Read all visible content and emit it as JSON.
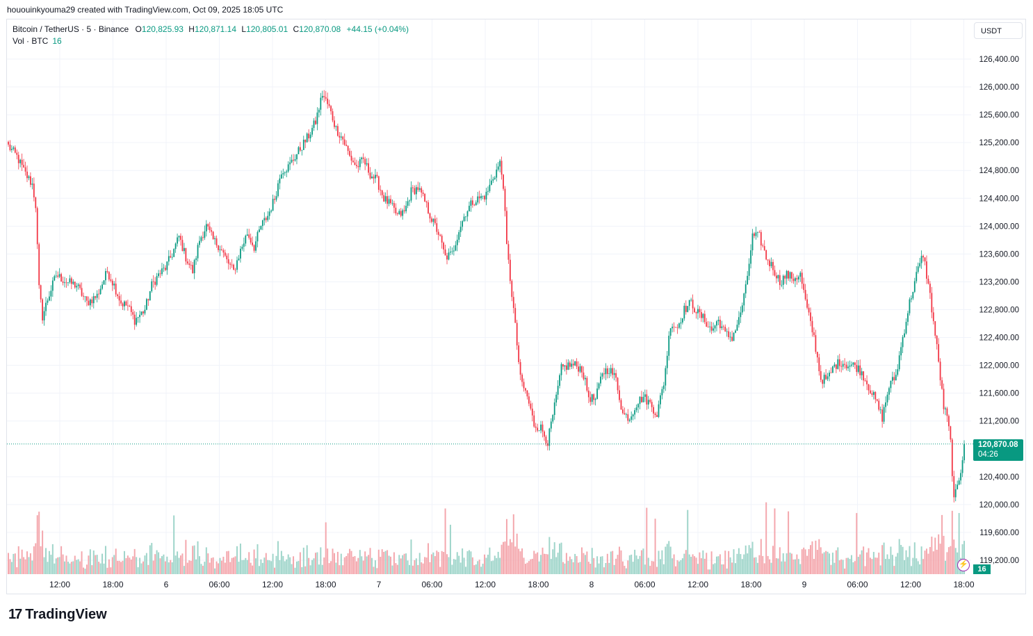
{
  "header": {
    "author_line": "hououinkyouma29 created with TradingView.com, Oct 09, 2025 18:05 UTC"
  },
  "legend": {
    "symbol": "Bitcoin / TetherUS · 5 · Binance",
    "o_label": "O",
    "o_value": "120,825.93",
    "h_label": "H",
    "h_value": "120,871.14",
    "l_label": "L",
    "l_value": "120,805.01",
    "c_label": "C",
    "c_value": "120,870.08",
    "change": "+44.15 (+0.04%)",
    "vol_label": "Vol · BTC",
    "vol_value": "16"
  },
  "currency_button": "USDT",
  "price_tag": {
    "price": "120,870.08",
    "countdown": "04:26"
  },
  "volume_tag": "16",
  "bolt_icon": "⚡",
  "brand": {
    "mark": "17",
    "name": "TradingView"
  },
  "colors": {
    "up": "#089981",
    "down": "#f23645",
    "up_vol": "#9fd5ca",
    "down_vol": "#f4a7ad",
    "grid": "#f0f3fa"
  },
  "chart_data": {
    "type": "candlestick",
    "title": "Bitcoin / TetherUS · 5 · Binance",
    "ylim": [
      118900,
      126700
    ],
    "y_ticks": [
      "126,400.00",
      "126,000.00",
      "125,600.00",
      "125,200.00",
      "124,800.00",
      "124,400.00",
      "124,000.00",
      "123,600.00",
      "123,200.00",
      "122,800.00",
      "122,400.00",
      "122,000.00",
      "121,600.00",
      "121,200.00",
      "120,400.00",
      "120,000.00",
      "119,600.00",
      "119,200.00"
    ],
    "x_ticks": [
      "12:00",
      "18:00",
      "6",
      "06:00",
      "12:00",
      "18:00",
      "7",
      "06:00",
      "12:00",
      "18:00",
      "8",
      "06:00",
      "12:00",
      "18:00",
      "9",
      "06:00",
      "12:00",
      "18:00"
    ],
    "last_price": 120870.08,
    "price_anchors": [
      [
        0,
        125150
      ],
      [
        5,
        125000
      ],
      [
        10,
        124750
      ],
      [
        14,
        124600
      ],
      [
        16,
        124300
      ],
      [
        18,
        123100
      ],
      [
        20,
        122700
      ],
      [
        23,
        122950
      ],
      [
        28,
        123300
      ],
      [
        34,
        123200
      ],
      [
        40,
        123150
      ],
      [
        46,
        122900
      ],
      [
        52,
        123000
      ],
      [
        58,
        123350
      ],
      [
        62,
        123150
      ],
      [
        66,
        122900
      ],
      [
        70,
        122850
      ],
      [
        74,
        122650
      ],
      [
        80,
        122800
      ],
      [
        84,
        123150
      ],
      [
        88,
        123300
      ],
      [
        92,
        123400
      ],
      [
        96,
        123600
      ],
      [
        100,
        123850
      ],
      [
        104,
        123550
      ],
      [
        108,
        123350
      ],
      [
        112,
        123800
      ],
      [
        116,
        124000
      ],
      [
        120,
        123800
      ],
      [
        124,
        123700
      ],
      [
        128,
        123500
      ],
      [
        132,
        123350
      ],
      [
        136,
        123650
      ],
      [
        140,
        123900
      ],
      [
        144,
        123700
      ],
      [
        148,
        124000
      ],
      [
        152,
        124150
      ],
      [
        156,
        124400
      ],
      [
        160,
        124800
      ],
      [
        164,
        124850
      ],
      [
        168,
        125000
      ],
      [
        172,
        125150
      ],
      [
        176,
        125300
      ],
      [
        180,
        125500
      ],
      [
        184,
        125900
      ],
      [
        188,
        125700
      ],
      [
        192,
        125400
      ],
      [
        196,
        125250
      ],
      [
        200,
        125000
      ],
      [
        204,
        124850
      ],
      [
        208,
        124950
      ],
      [
        212,
        124750
      ],
      [
        216,
        124650
      ],
      [
        220,
        124400
      ],
      [
        224,
        124300
      ],
      [
        228,
        124150
      ],
      [
        232,
        124200
      ],
      [
        236,
        124500
      ],
      [
        240,
        124550
      ],
      [
        244,
        124350
      ],
      [
        248,
        124100
      ],
      [
        252,
        123900
      ],
      [
        256,
        123550
      ],
      [
        260,
        123600
      ],
      [
        264,
        123950
      ],
      [
        268,
        124200
      ],
      [
        272,
        124350
      ],
      [
        276,
        124400
      ],
      [
        280,
        124450
      ],
      [
        284,
        124700
      ],
      [
        288,
        124900
      ],
      [
        290,
        124600
      ],
      [
        292,
        123700
      ],
      [
        296,
        122800
      ],
      [
        300,
        121800
      ],
      [
        304,
        121550
      ],
      [
        308,
        121150
      ],
      [
        312,
        121100
      ],
      [
        316,
        120900
      ],
      [
        320,
        121400
      ],
      [
        324,
        121950
      ],
      [
        328,
        122000
      ],
      [
        332,
        122000
      ],
      [
        336,
        121950
      ],
      [
        340,
        121550
      ],
      [
        344,
        121500
      ],
      [
        348,
        121900
      ],
      [
        352,
        121950
      ],
      [
        356,
        121800
      ],
      [
        360,
        121300
      ],
      [
        364,
        121250
      ],
      [
        368,
        121450
      ],
      [
        372,
        121550
      ],
      [
        376,
        121450
      ],
      [
        380,
        121300
      ],
      [
        384,
        121750
      ],
      [
        388,
        122600
      ],
      [
        392,
        122550
      ],
      [
        396,
        122800
      ],
      [
        400,
        122900
      ],
      [
        404,
        122750
      ],
      [
        408,
        122650
      ],
      [
        412,
        122500
      ],
      [
        416,
        122650
      ],
      [
        420,
        122450
      ],
      [
        424,
        122400
      ],
      [
        428,
        122650
      ],
      [
        432,
        123100
      ],
      [
        436,
        123850
      ],
      [
        440,
        123850
      ],
      [
        444,
        123550
      ],
      [
        448,
        123400
      ],
      [
        452,
        123200
      ],
      [
        456,
        123300
      ],
      [
        460,
        123250
      ],
      [
        464,
        123300
      ],
      [
        468,
        122800
      ],
      [
        472,
        122400
      ],
      [
        476,
        121800
      ],
      [
        480,
        121800
      ],
      [
        484,
        122000
      ],
      [
        488,
        122050
      ],
      [
        492,
        122000
      ],
      [
        496,
        122000
      ],
      [
        500,
        121900
      ],
      [
        504,
        121700
      ],
      [
        508,
        121500
      ],
      [
        512,
        121250
      ],
      [
        516,
        121700
      ],
      [
        520,
        121850
      ],
      [
        524,
        122400
      ],
      [
        528,
        122900
      ],
      [
        532,
        123300
      ],
      [
        536,
        123600
      ],
      [
        540,
        123000
      ],
      [
        544,
        122250
      ],
      [
        548,
        121400
      ],
      [
        550,
        121250
      ],
      [
        552,
        120900
      ],
      [
        554,
        120050
      ],
      [
        556,
        120250
      ],
      [
        558,
        120500
      ],
      [
        560,
        120870
      ]
    ],
    "candle_count": 561
  }
}
